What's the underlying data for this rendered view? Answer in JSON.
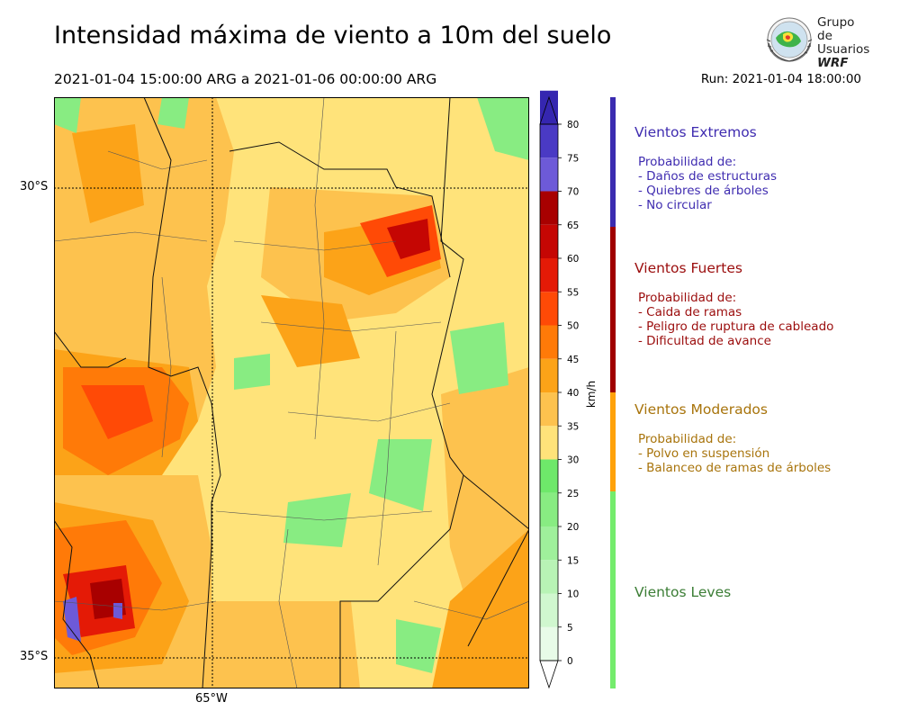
{
  "header": {
    "title": "Intensidad máxima de viento a 10m del suelo",
    "period": "2021-01-04 15:00:00 ARG  a  2021-01-06 00:00:00 ARG",
    "run": "Run: 2021-01-04 18:00:00"
  },
  "logo": {
    "line1": "Grupo de",
    "line2": "Usuarios",
    "line3": "WRF"
  },
  "map": {
    "lat_labels": [
      "30°S",
      "35°S"
    ],
    "lon_labels": [
      "65°W"
    ]
  },
  "colorbar": {
    "unit": "km/h",
    "ticks": [
      "0",
      "5",
      "10",
      "15",
      "20",
      "25",
      "30",
      "35",
      "40",
      "45",
      "50",
      "55",
      "60",
      "65",
      "70",
      "75",
      "80"
    ],
    "colors": [
      "#e8fbe8",
      "#d0f7cf",
      "#b8f3b5",
      "#9ff09b",
      "#88ec82",
      "#6ee86a",
      "#ffe37a",
      "#fdc24e",
      "#fca318",
      "#ff7a08",
      "#ff4a06",
      "#e41a06",
      "#c50603",
      "#a80000",
      "#6d5ad8",
      "#4a3ac4",
      "#3526b0"
    ]
  },
  "legend": {
    "categories": [
      {
        "title": "Vientos Extremos",
        "color": "#3f2cb0",
        "bar_color": "#3a2bb0",
        "desc_header": "Probabilidad de:",
        "items": [
          "- Daños de estructuras",
          "- Quiebres de árboles",
          "- No circular"
        ]
      },
      {
        "title": "Vientos Fuertes",
        "color": "#9b0d0d",
        "bar_color": "#a00000",
        "desc_header": "Probabilidad de:",
        "items": [
          "- Caida de ramas",
          "- Peligro de ruptura de cableado",
          "- Dificultad de avance"
        ]
      },
      {
        "title": "Vientos Moderados",
        "color": "#a8740c",
        "bar_color": "#ffa20a",
        "desc_header": "Probabilidad de:",
        "items": [
          "- Polvo en suspensión",
          "- Balanceo de ramas de árboles"
        ]
      },
      {
        "title": "Vientos Leves",
        "color": "#3b7d35",
        "bar_color": "#74ec6c",
        "desc_header": "",
        "items": []
      }
    ]
  }
}
